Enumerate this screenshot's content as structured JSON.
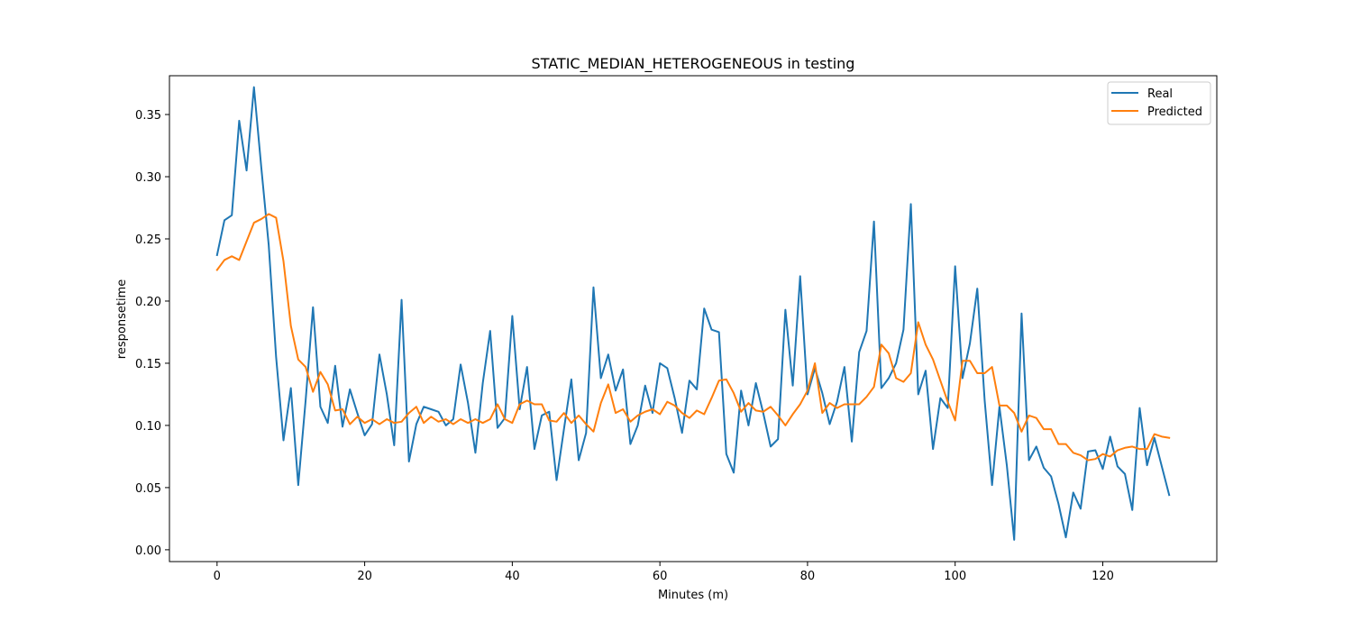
{
  "chart_data": {
    "type": "line",
    "title": "STATIC_MEDIAN_HETEROGENEOUS in testing",
    "xlabel": "Minutes (m)",
    "ylabel": "responsetime",
    "xlim": [
      -6.45,
      135.45
    ],
    "ylim": [
      -0.0095,
      0.3812
    ],
    "xticks": [
      0,
      20,
      40,
      60,
      80,
      100,
      120
    ],
    "yticks": [
      0.0,
      0.05,
      0.1,
      0.15,
      0.2,
      0.25,
      0.3,
      0.35
    ],
    "ytick_labels": [
      "0.00",
      "0.05",
      "0.10",
      "0.15",
      "0.20",
      "0.25",
      "0.30",
      "0.35"
    ],
    "grid": false,
    "legend_position": "top-right",
    "series": [
      {
        "name": "Real",
        "color": "#1f77b4",
        "values": [
          0.237,
          0.265,
          0.269,
          0.345,
          0.305,
          0.372,
          0.307,
          0.245,
          0.155,
          0.088,
          0.13,
          0.052,
          0.12,
          0.195,
          0.115,
          0.102,
          0.148,
          0.099,
          0.129,
          0.11,
          0.092,
          0.101,
          0.157,
          0.125,
          0.084,
          0.201,
          0.071,
          0.101,
          0.115,
          0.113,
          0.111,
          0.1,
          0.105,
          0.149,
          0.118,
          0.078,
          0.134,
          0.176,
          0.098,
          0.106,
          0.188,
          0.113,
          0.147,
          0.081,
          0.108,
          0.111,
          0.056,
          0.097,
          0.137,
          0.072,
          0.094,
          0.211,
          0.138,
          0.157,
          0.128,
          0.145,
          0.085,
          0.1,
          0.132,
          0.11,
          0.15,
          0.146,
          0.122,
          0.094,
          0.136,
          0.129,
          0.194,
          0.177,
          0.175,
          0.077,
          0.062,
          0.128,
          0.1,
          0.134,
          0.11,
          0.083,
          0.089,
          0.193,
          0.132,
          0.22,
          0.125,
          0.146,
          0.126,
          0.101,
          0.119,
          0.147,
          0.087,
          0.159,
          0.176,
          0.264,
          0.13,
          0.138,
          0.15,
          0.177,
          0.278,
          0.125,
          0.144,
          0.081,
          0.122,
          0.114,
          0.228,
          0.138,
          0.166,
          0.21,
          0.12,
          0.052,
          0.115,
          0.068,
          0.008,
          0.19,
          0.072,
          0.083,
          0.066,
          0.059,
          0.037,
          0.01,
          0.046,
          0.033,
          0.079,
          0.08,
          0.065,
          0.091,
          0.067,
          0.061,
          0.032,
          0.114,
          0.068,
          0.09,
          0.067,
          0.044
        ]
      },
      {
        "name": "Predicted",
        "color": "#ff7f0e",
        "values": [
          0.225,
          0.233,
          0.236,
          0.233,
          0.248,
          0.263,
          0.266,
          0.27,
          0.267,
          0.232,
          0.18,
          0.153,
          0.147,
          0.127,
          0.143,
          0.133,
          0.112,
          0.113,
          0.101,
          0.107,
          0.102,
          0.105,
          0.101,
          0.105,
          0.102,
          0.103,
          0.11,
          0.115,
          0.102,
          0.107,
          0.103,
          0.105,
          0.101,
          0.105,
          0.102,
          0.105,
          0.102,
          0.105,
          0.117,
          0.105,
          0.102,
          0.117,
          0.12,
          0.117,
          0.117,
          0.104,
          0.103,
          0.11,
          0.102,
          0.108,
          0.101,
          0.095,
          0.118,
          0.133,
          0.11,
          0.113,
          0.103,
          0.108,
          0.111,
          0.113,
          0.109,
          0.119,
          0.116,
          0.11,
          0.106,
          0.112,
          0.109,
          0.122,
          0.136,
          0.137,
          0.126,
          0.111,
          0.118,
          0.112,
          0.111,
          0.115,
          0.108,
          0.1,
          0.109,
          0.117,
          0.128,
          0.15,
          0.11,
          0.118,
          0.114,
          0.117,
          0.117,
          0.117,
          0.123,
          0.131,
          0.165,
          0.158,
          0.138,
          0.135,
          0.142,
          0.183,
          0.165,
          0.153,
          0.136,
          0.119,
          0.104,
          0.152,
          0.152,
          0.142,
          0.142,
          0.147,
          0.116,
          0.116,
          0.11,
          0.095,
          0.108,
          0.106,
          0.097,
          0.097,
          0.085,
          0.085,
          0.078,
          0.076,
          0.072,
          0.073,
          0.077,
          0.075,
          0.08,
          0.082,
          0.083,
          0.081,
          0.081,
          0.093,
          0.091,
          0.09
        ]
      }
    ]
  }
}
